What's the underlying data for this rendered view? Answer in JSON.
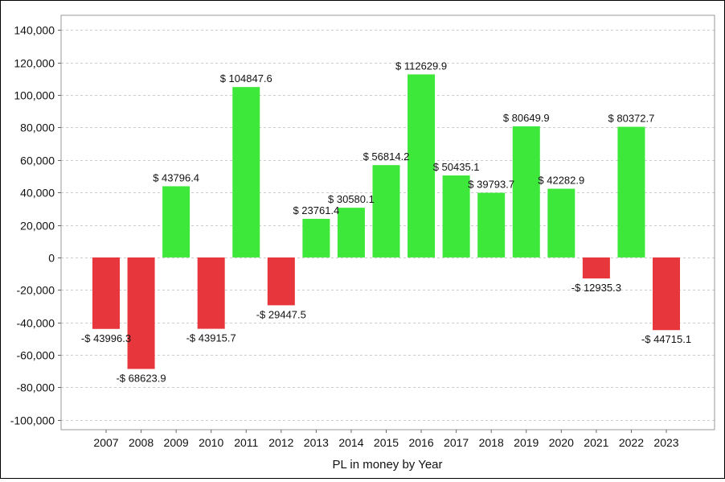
{
  "chart_data": {
    "type": "bar",
    "title": "",
    "xlabel": "PL in money by Year",
    "ylabel": "",
    "categories": [
      "2007",
      "2008",
      "2009",
      "2010",
      "2011",
      "2012",
      "2013",
      "2014",
      "2015",
      "2016",
      "2017",
      "2018",
      "2019",
      "2020",
      "2021",
      "2022",
      "2023"
    ],
    "values": [
      -43996.3,
      -68623.9,
      43796.4,
      -43915.7,
      104847.6,
      -29447.5,
      23761.4,
      30580.1,
      56814.2,
      112629.9,
      50435.1,
      39793.7,
      80649.9,
      42282.9,
      -12935.3,
      80372.7,
      -44715.1
    ],
    "data_labels": [
      "-$ 43996.3",
      "-$ 68623.9",
      "$ 43796.4",
      "-$ 43915.7",
      "$ 104847.6",
      "-$ 29447.5",
      "$ 23761.4",
      "$ 30580.1",
      "$ 56814.2",
      "$ 112629.9",
      "$ 50435.1",
      "$ 39793.7",
      "$ 80649.9",
      "$ 42282.9",
      "-$ 12935.3",
      "$ 80372.7",
      "-$ 44715.1"
    ],
    "yticks": [
      140000,
      120000,
      100000,
      80000,
      60000,
      40000,
      20000,
      0,
      -20000,
      -40000,
      -60000,
      -80000,
      -100000
    ],
    "ytick_labels": [
      "140,000",
      "120,000",
      "100,000",
      "80,000",
      "60,000",
      "40,000",
      "20,000",
      "0",
      "-20,000",
      "-40,000",
      "-60,000",
      "-80,000",
      "-100,000"
    ],
    "ylim": [
      -106000,
      149000
    ],
    "grid": true,
    "legend": "none",
    "colors": {
      "positive": "#3de83a",
      "negative": "#e8373c",
      "grid": "#cccccc"
    }
  }
}
